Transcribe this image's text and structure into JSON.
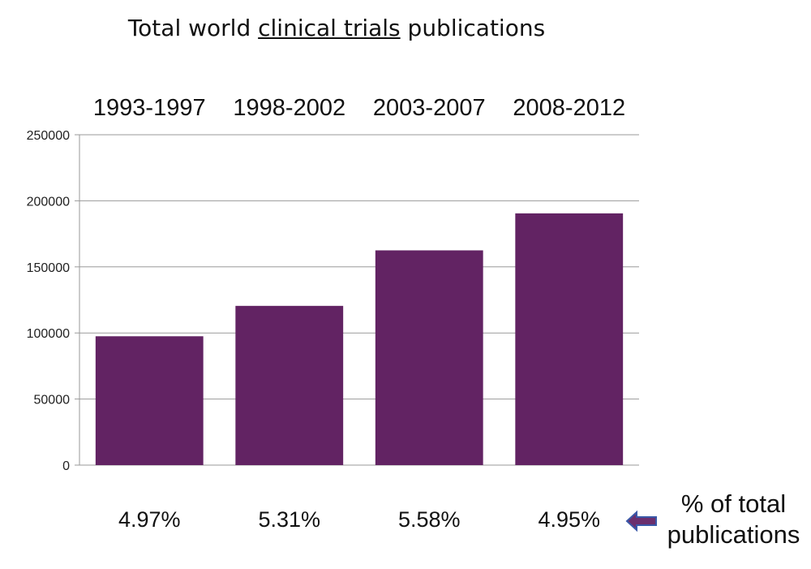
{
  "title": {
    "before": "Total world ",
    "underlined": "clinical trials",
    "after": " publications"
  },
  "note": {
    "line1": "%  of total",
    "line2": "publications"
  },
  "colors": {
    "bar": "#622363",
    "arrow": "#6b2f6e",
    "arrow_outline": "#3a58a8"
  },
  "chart_data": {
    "type": "bar",
    "title": "Total world clinical trials publications",
    "categories": [
      "1993-1997",
      "1998-2002",
      "2003-2007",
      "2008-2012"
    ],
    "values": [
      97500,
      120500,
      162500,
      190500
    ],
    "percent_labels": [
      "4.97%",
      "5.31%",
      "5.58%",
      "4.95%"
    ],
    "ylim": [
      0,
      250000
    ],
    "yticks": [
      0,
      50000,
      100000,
      150000,
      200000,
      250000
    ],
    "grid": true,
    "legend": "none"
  }
}
